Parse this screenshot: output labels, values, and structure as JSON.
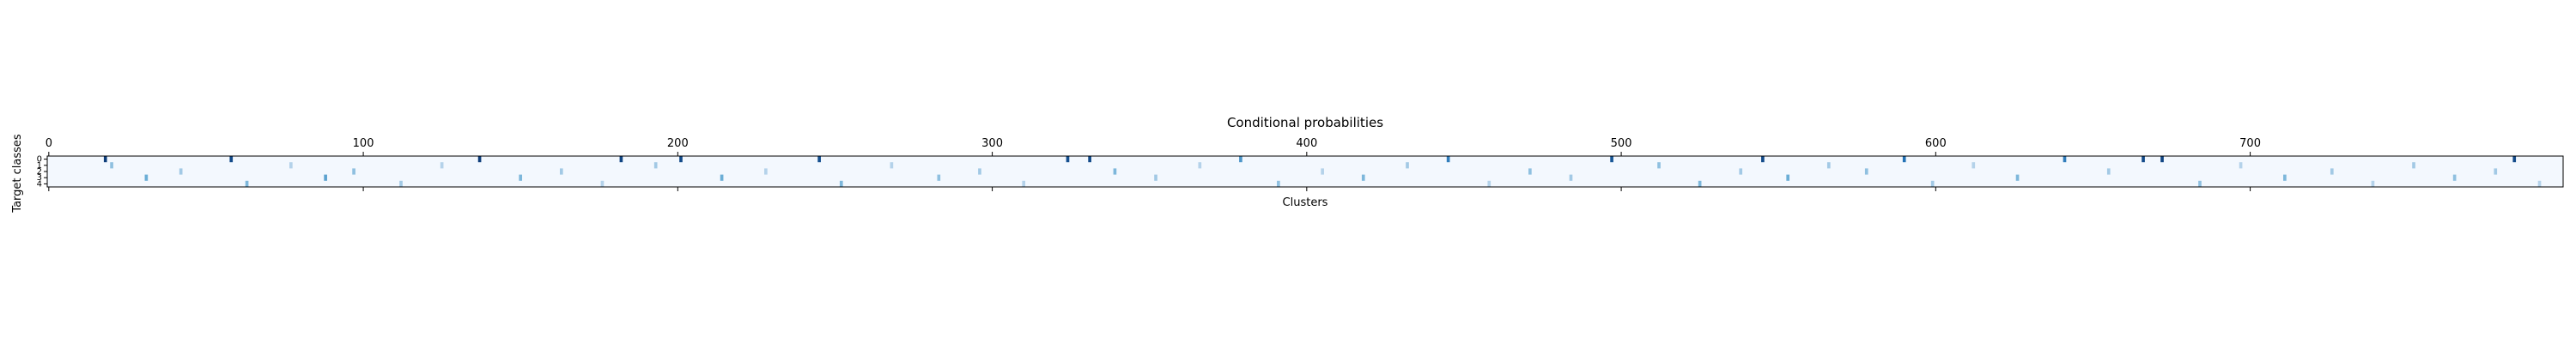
{
  "chart_data": {
    "type": "heatmap",
    "title": "Conditional probabilities",
    "xlabel": "Clusters",
    "ylabel": "Target classes",
    "x_ticks": [
      0,
      100,
      200,
      300,
      400,
      500,
      600,
      700
    ],
    "x_tick_labels": [
      "0",
      "100",
      "200",
      "300",
      "400",
      "500",
      "600",
      "700"
    ],
    "y_ticks": [
      0,
      1,
      2,
      3,
      4
    ],
    "y_tick_labels": [
      "0",
      "1",
      "2",
      "3",
      "4"
    ],
    "x_axis_position": "top",
    "colormap": "Blues",
    "n_clusters": 800,
    "n_classes": 5,
    "grid": false,
    "cells": [
      {
        "x": 18,
        "y": 0,
        "v": 0.95
      },
      {
        "x": 20,
        "y": 1,
        "v": 0.4
      },
      {
        "x": 31,
        "y": 3,
        "v": 0.5
      },
      {
        "x": 42,
        "y": 2,
        "v": 0.35
      },
      {
        "x": 58,
        "y": 0,
        "v": 0.9
      },
      {
        "x": 63,
        "y": 4,
        "v": 0.45
      },
      {
        "x": 77,
        "y": 1,
        "v": 0.3
      },
      {
        "x": 88,
        "y": 3,
        "v": 0.55
      },
      {
        "x": 97,
        "y": 2,
        "v": 0.4
      },
      {
        "x": 112,
        "y": 4,
        "v": 0.35
      },
      {
        "x": 125,
        "y": 1,
        "v": 0.3
      },
      {
        "x": 137,
        "y": 0,
        "v": 0.95
      },
      {
        "x": 150,
        "y": 3,
        "v": 0.45
      },
      {
        "x": 163,
        "y": 2,
        "v": 0.35
      },
      {
        "x": 176,
        "y": 4,
        "v": 0.3
      },
      {
        "x": 182,
        "y": 0,
        "v": 0.92
      },
      {
        "x": 193,
        "y": 1,
        "v": 0.35
      },
      {
        "x": 201,
        "y": 0,
        "v": 0.9
      },
      {
        "x": 214,
        "y": 3,
        "v": 0.5
      },
      {
        "x": 228,
        "y": 2,
        "v": 0.3
      },
      {
        "x": 245,
        "y": 0,
        "v": 0.88
      },
      {
        "x": 252,
        "y": 4,
        "v": 0.45
      },
      {
        "x": 268,
        "y": 1,
        "v": 0.3
      },
      {
        "x": 283,
        "y": 3,
        "v": 0.4
      },
      {
        "x": 296,
        "y": 2,
        "v": 0.35
      },
      {
        "x": 310,
        "y": 4,
        "v": 0.3
      },
      {
        "x": 324,
        "y": 0,
        "v": 0.88
      },
      {
        "x": 331,
        "y": 0,
        "v": 0.9
      },
      {
        "x": 339,
        "y": 2,
        "v": 0.45
      },
      {
        "x": 352,
        "y": 3,
        "v": 0.35
      },
      {
        "x": 366,
        "y": 1,
        "v": 0.3
      },
      {
        "x": 379,
        "y": 0,
        "v": 0.6
      },
      {
        "x": 391,
        "y": 4,
        "v": 0.4
      },
      {
        "x": 405,
        "y": 2,
        "v": 0.3
      },
      {
        "x": 418,
        "y": 3,
        "v": 0.45
      },
      {
        "x": 432,
        "y": 1,
        "v": 0.35
      },
      {
        "x": 445,
        "y": 0,
        "v": 0.7
      },
      {
        "x": 458,
        "y": 4,
        "v": 0.3
      },
      {
        "x": 471,
        "y": 2,
        "v": 0.4
      },
      {
        "x": 484,
        "y": 3,
        "v": 0.35
      },
      {
        "x": 497,
        "y": 0,
        "v": 0.85
      },
      {
        "x": 512,
        "y": 1,
        "v": 0.4
      },
      {
        "x": 525,
        "y": 4,
        "v": 0.45
      },
      {
        "x": 538,
        "y": 2,
        "v": 0.35
      },
      {
        "x": 545,
        "y": 0,
        "v": 0.9
      },
      {
        "x": 553,
        "y": 3,
        "v": 0.5
      },
      {
        "x": 566,
        "y": 1,
        "v": 0.35
      },
      {
        "x": 578,
        "y": 2,
        "v": 0.4
      },
      {
        "x": 590,
        "y": 0,
        "v": 0.75
      },
      {
        "x": 599,
        "y": 4,
        "v": 0.35
      },
      {
        "x": 612,
        "y": 1,
        "v": 0.3
      },
      {
        "x": 626,
        "y": 3,
        "v": 0.45
      },
      {
        "x": 641,
        "y": 0,
        "v": 0.7
      },
      {
        "x": 655,
        "y": 2,
        "v": 0.35
      },
      {
        "x": 666,
        "y": 0,
        "v": 0.9
      },
      {
        "x": 672,
        "y": 0,
        "v": 0.92
      },
      {
        "x": 684,
        "y": 4,
        "v": 0.4
      },
      {
        "x": 697,
        "y": 1,
        "v": 0.3
      },
      {
        "x": 711,
        "y": 3,
        "v": 0.45
      },
      {
        "x": 726,
        "y": 2,
        "v": 0.35
      },
      {
        "x": 739,
        "y": 4,
        "v": 0.3
      },
      {
        "x": 752,
        "y": 1,
        "v": 0.35
      },
      {
        "x": 765,
        "y": 3,
        "v": 0.4
      },
      {
        "x": 778,
        "y": 2,
        "v": 0.35
      },
      {
        "x": 784,
        "y": 0,
        "v": 0.9
      },
      {
        "x": 792,
        "y": 4,
        "v": 0.3
      }
    ]
  }
}
